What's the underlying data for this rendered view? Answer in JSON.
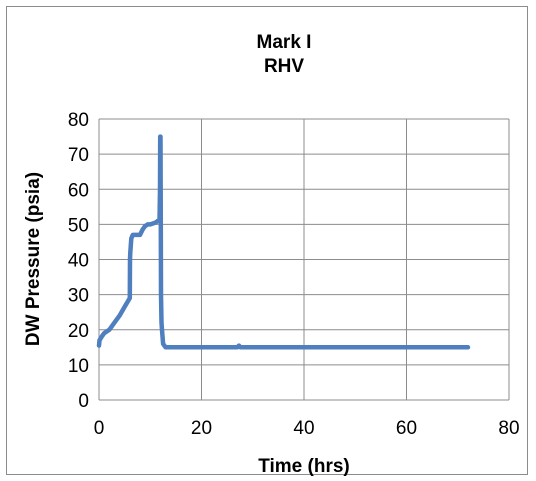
{
  "chart_data": {
    "type": "line",
    "title_lines": [
      "Mark I",
      "RHV"
    ],
    "xlabel": "Time (hrs)",
    "ylabel": "DW Pressure  (psia)",
    "xlim": [
      0,
      80
    ],
    "ylim": [
      0,
      80
    ],
    "x_ticks": [
      0,
      20,
      40,
      60,
      80
    ],
    "y_ticks": [
      0,
      10,
      20,
      30,
      40,
      50,
      60,
      70,
      80
    ],
    "grid": true,
    "legend": "none",
    "series": [
      {
        "color": "#4f7fbf",
        "x": [
          0,
          0.1,
          0.5,
          1,
          2,
          3,
          4,
          5,
          5.6,
          6,
          6.05,
          6.1,
          6.3,
          6.6,
          7,
          8,
          8.5,
          9,
          9.5,
          10,
          11,
          11.5,
          11.8,
          11.9,
          11.95,
          12,
          12.05,
          12.1,
          12.2,
          12.3,
          12.5,
          13,
          15,
          20,
          27,
          27.3,
          27.6,
          30,
          40,
          50,
          60,
          70,
          72
        ],
        "y": [
          15.5,
          17,
          18,
          19,
          20,
          22,
          24,
          26.5,
          28,
          29,
          40,
          42,
          46,
          47,
          47,
          47,
          48.5,
          49.5,
          50,
          50,
          50.5,
          51,
          51,
          60,
          75,
          75,
          50,
          30,
          22,
          20,
          16,
          15,
          15,
          15,
          15,
          15.5,
          15,
          15,
          15,
          15,
          15,
          15,
          15
        ]
      }
    ]
  }
}
